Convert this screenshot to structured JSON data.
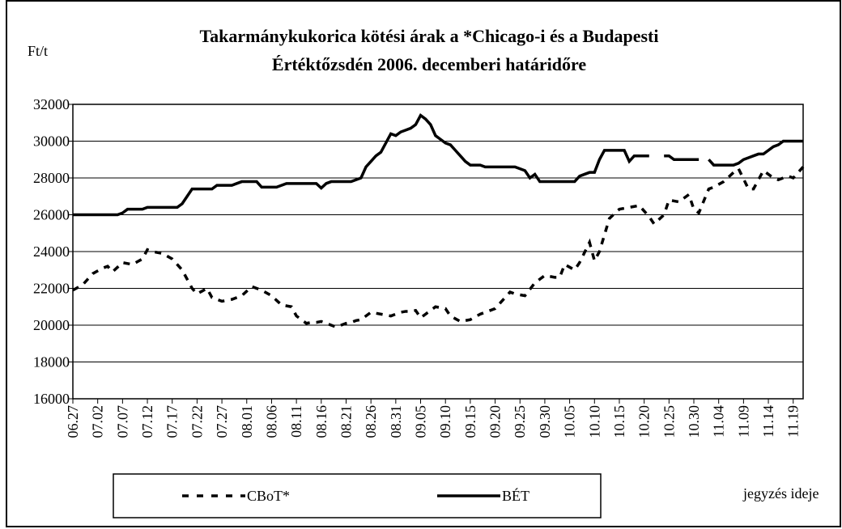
{
  "chart_data": {
    "type": "line",
    "title": [
      "Takarmánykukorica kötési árak a  *Chicago-i és a Budapesti",
      "Értéktőzsdén 2006. decemberi határidőre"
    ],
    "ylabel": "Ft/t",
    "xlabel": "jegyzés ideje",
    "categories": [
      "06.27",
      null,
      null,
      null,
      null,
      "07.02",
      null,
      null,
      null,
      null,
      "07.07",
      null,
      null,
      null,
      null,
      "07.12",
      null,
      null,
      null,
      null,
      "07.17",
      null,
      null,
      null,
      null,
      "07.22",
      null,
      null,
      null,
      null,
      "07.27",
      null,
      null,
      null,
      null,
      "08.01",
      null,
      null,
      null,
      null,
      "08.06",
      null,
      null,
      null,
      null,
      "08.11",
      null,
      null,
      null,
      null,
      "08.16",
      null,
      null,
      null,
      null,
      "08.21",
      null,
      null,
      null,
      null,
      "08.26",
      null,
      null,
      null,
      null,
      "08.31",
      null,
      null,
      null,
      null,
      "09.05",
      null,
      null,
      null,
      null,
      "09.10",
      null,
      null,
      null,
      null,
      "09.15",
      null,
      null,
      null,
      null,
      "09.20",
      null,
      null,
      null,
      null,
      "09.25",
      null,
      null,
      null,
      null,
      "09.30",
      null,
      null,
      null,
      null,
      "10.05",
      null,
      null,
      null,
      null,
      "10.10",
      null,
      null,
      null,
      null,
      "10.15",
      null,
      null,
      null,
      null,
      "10.20",
      null,
      null,
      null,
      null,
      "10.25",
      null,
      null,
      null,
      null,
      "10.30",
      null,
      null,
      null,
      null,
      "11.04",
      null,
      null,
      null,
      null,
      "11.09",
      null,
      null,
      null,
      null,
      "11.14",
      null,
      null,
      null,
      null,
      "11.19",
      null,
      null
    ],
    "series": [
      {
        "name": "CBoT*",
        "color": "#000000",
        "dash": true,
        "values": [
          21900,
          22050,
          22200,
          22500,
          22800,
          22950,
          23100,
          23200,
          22900,
          23150,
          23400,
          23350,
          23300,
          23450,
          23600,
          24100,
          24000,
          23950,
          23900,
          23750,
          23600,
          23300,
          23000,
          22500,
          22000,
          21700,
          21850,
          22000,
          21500,
          21400,
          21300,
          21350,
          21400,
          21500,
          21600,
          21850,
          22100,
          22000,
          21900,
          21750,
          21600,
          21350,
          21100,
          21050,
          21000,
          20500,
          20300,
          20100,
          20150,
          20150,
          20200,
          20100,
          20000,
          19900,
          20000,
          20100,
          20150,
          20250,
          20300,
          20500,
          20700,
          20650,
          20600,
          20550,
          20500,
          20600,
          20700,
          20750,
          20750,
          20800,
          20400,
          20600,
          20800,
          21000,
          20950,
          20900,
          20500,
          20350,
          20200,
          20250,
          20300,
          20450,
          20600,
          20700,
          20800,
          20900,
          21200,
          21500,
          21800,
          21700,
          21650,
          21600,
          21950,
          22300,
          22500,
          22700,
          22650,
          22600,
          22600,
          23300,
          23150,
          23000,
          23400,
          23950,
          24500,
          23500,
          24000,
          24900,
          25800,
          26050,
          26300,
          26350,
          26400,
          26450,
          26500,
          26200,
          25900,
          25500,
          25750,
          26000,
          26800,
          26750,
          26700,
          26900,
          27100,
          26300,
          26100,
          26750,
          27400,
          27500,
          27650,
          27800,
          28050,
          28300,
          28500,
          27950,
          27400,
          27400,
          27900,
          28400,
          28200,
          28000,
          27900,
          28000,
          28100,
          28000,
          28300,
          28600
        ]
      },
      {
        "name": "BÉT",
        "color": "#000000",
        "dash": false,
        "values": [
          26000,
          26000,
          26000,
          26000,
          26000,
          26000,
          26000,
          26000,
          26000,
          26000,
          26100,
          26300,
          26300,
          26300,
          26300,
          26400,
          26400,
          26400,
          26400,
          26400,
          26400,
          26400,
          26600,
          27000,
          27400,
          27400,
          27400,
          27400,
          27400,
          27600,
          27600,
          27600,
          27600,
          27700,
          27800,
          27800,
          27800,
          27800,
          27500,
          27500,
          27500,
          27500,
          27600,
          27700,
          27700,
          27700,
          27700,
          27700,
          27700,
          27700,
          27450,
          27700,
          27800,
          27800,
          27800,
          27800,
          27800,
          27900,
          28000,
          28600,
          28900,
          29200,
          29400,
          29900,
          30400,
          30300,
          30500,
          30600,
          30700,
          30900,
          31400,
          31200,
          30900,
          30300,
          30100,
          29900,
          29800,
          29500,
          29200,
          28900,
          28700,
          28700,
          28700,
          28600,
          28600,
          28600,
          28600,
          28600,
          28600,
          28600,
          28500,
          28400,
          28000,
          28200,
          27800,
          27800,
          27800,
          27800,
          27800,
          27800,
          27800,
          27800,
          28100,
          28200,
          28300,
          28300,
          29000,
          29500,
          29500,
          29500,
          29500,
          29500,
          28900,
          29200,
          29200,
          29200,
          29200,
          null,
          null,
          29200,
          29200,
          29000,
          29000,
          29000,
          29000,
          29000,
          29000,
          null,
          29000,
          28700,
          28700,
          28700,
          28700,
          28700,
          28800,
          29000,
          29100,
          29200,
          29300,
          29300,
          29500,
          29700,
          29800,
          30000,
          30000,
          30000,
          30000,
          30000
        ]
      }
    ],
    "ylim": [
      16000,
      32000
    ],
    "yticks": [
      16000,
      18000,
      20000,
      22000,
      24000,
      26000,
      28000,
      30000,
      32000
    ],
    "grid": true
  }
}
